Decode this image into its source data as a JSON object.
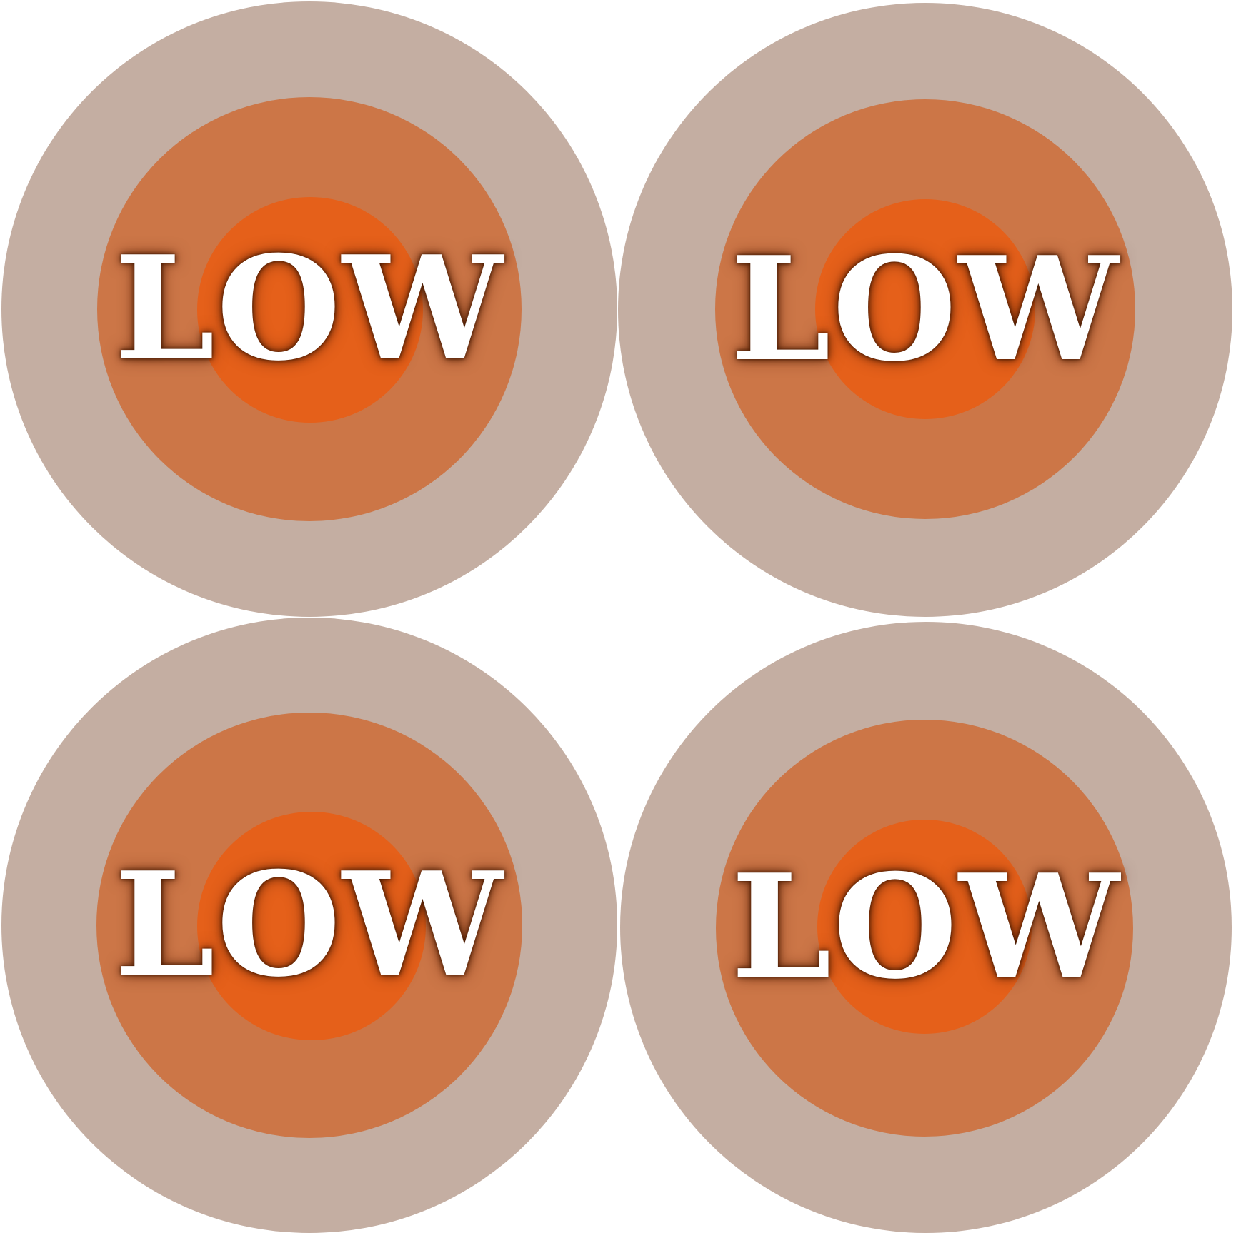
{
  "colors": {
    "background": "#ffffff",
    "outer_ring": "#c4aea2",
    "middle_ring": "#cc7647",
    "inner_circle": "#e5601a",
    "label": "#ffffff"
  },
  "badges": [
    {
      "label": "LOW"
    },
    {
      "label": "LOW"
    },
    {
      "label": "LOW"
    },
    {
      "label": "LOW"
    }
  ]
}
